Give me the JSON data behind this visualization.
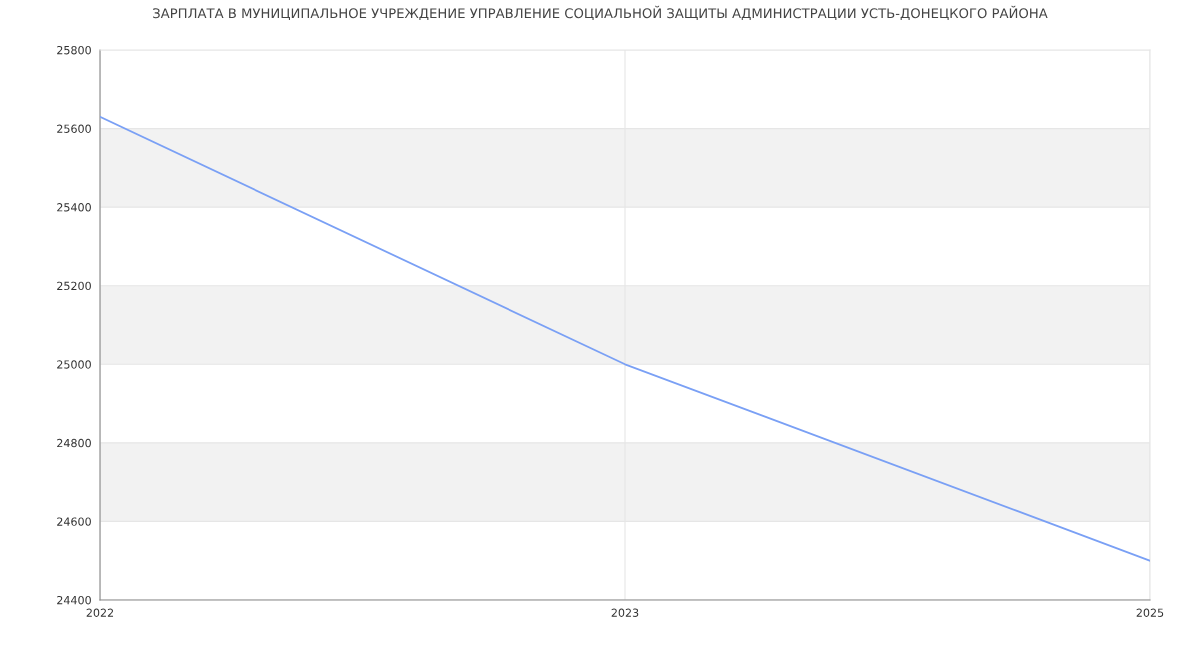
{
  "chart_data": {
    "type": "line",
    "title": "ЗАРПЛАТА В МУНИЦИПАЛЬНОЕ УЧРЕЖДЕНИЕ УПРАВЛЕНИЕ СОЦИАЛЬНОЙ ЗАЩИТЫ АДМИНИСТРАЦИИ УСТЬ-ДОНЕЦКОГО РАЙОНА",
    "categories": [
      "2022",
      "2023",
      "2025"
    ],
    "series": [
      {
        "color": "#7aa0f5",
        "values": [
          25630,
          25000,
          24500
        ]
      }
    ],
    "ylim": [
      24400,
      25800
    ],
    "yticks": [
      24400,
      24600,
      24800,
      25000,
      25200,
      25400,
      25600,
      25800
    ],
    "bands": [
      {
        "axis": "y",
        "from": 24600,
        "to": 24800,
        "color": "#f2f2f2"
      },
      {
        "axis": "y",
        "from": 25000,
        "to": 25200,
        "color": "#f2f2f2"
      },
      {
        "axis": "y",
        "from": 25400,
        "to": 25600,
        "color": "#f2f2f2"
      }
    ],
    "grid": true,
    "marker": "none",
    "line_style": "solid"
  }
}
